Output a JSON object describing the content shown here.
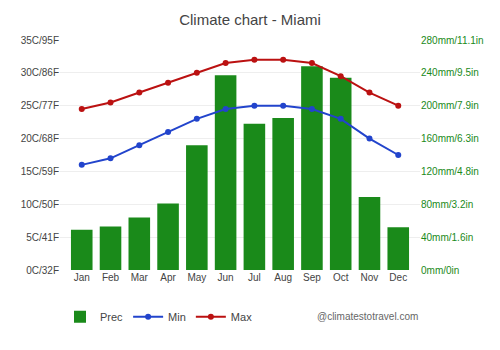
{
  "chart_data": {
    "type": "bar",
    "title": "Climate chart - Miami",
    "categories": [
      "Jan",
      "Feb",
      "Mar",
      "Apr",
      "May",
      "Jun",
      "Jul",
      "Aug",
      "Sep",
      "Oct",
      "Nov",
      "Dec"
    ],
    "series": [
      {
        "name": "Prec",
        "type": "bar",
        "axis": "y2",
        "color": "#1a8a1a",
        "values": [
          49,
          53,
          64,
          81,
          152,
          237,
          178,
          185,
          248,
          234,
          89,
          52
        ]
      },
      {
        "name": "Min",
        "type": "line",
        "color": "#2244cc",
        "marker": "circle",
        "line_style": "solid",
        "values": [
          16,
          17,
          19,
          21,
          23,
          24.5,
          25,
          25,
          24.5,
          23,
          20,
          17.5
        ]
      },
      {
        "name": "Max",
        "type": "line",
        "color": "#bb1111",
        "marker": "circle",
        "line_style": "solid",
        "values": [
          24.5,
          25.5,
          27,
          28.5,
          30,
          31.5,
          32,
          32,
          31.5,
          29.5,
          27,
          25
        ]
      }
    ],
    "ylim": [
      0,
      35
    ],
    "yticks": [
      {
        "value": 0,
        "label": "0C/32F"
      },
      {
        "value": 5,
        "label": "5C/41F"
      },
      {
        "value": 10,
        "label": "10C/50F"
      },
      {
        "value": 15,
        "label": "15C/59F"
      },
      {
        "value": 20,
        "label": "20C/68F"
      },
      {
        "value": 25,
        "label": "25C/77F"
      },
      {
        "value": 30,
        "label": "30C/86F"
      },
      {
        "value": 35,
        "label": "35C/95F"
      }
    ],
    "y2lim": [
      0,
      280
    ],
    "y2ticks": [
      {
        "value": 0,
        "label": "0mm/0in"
      },
      {
        "value": 40,
        "label": "40mm/1.6in"
      },
      {
        "value": 80,
        "label": "80mm/3.2in"
      },
      {
        "value": 120,
        "label": "120mm/4.8in"
      },
      {
        "value": 160,
        "label": "160mm/6.3in"
      },
      {
        "value": 200,
        "label": "200mm/7.9in"
      },
      {
        "value": 240,
        "label": "240mm/9.5in"
      },
      {
        "value": 280,
        "label": "280mm/11.1in"
      }
    ],
    "grid": true,
    "legend": "bottom",
    "annotations": [
      "@climatestotravel.com"
    ]
  }
}
